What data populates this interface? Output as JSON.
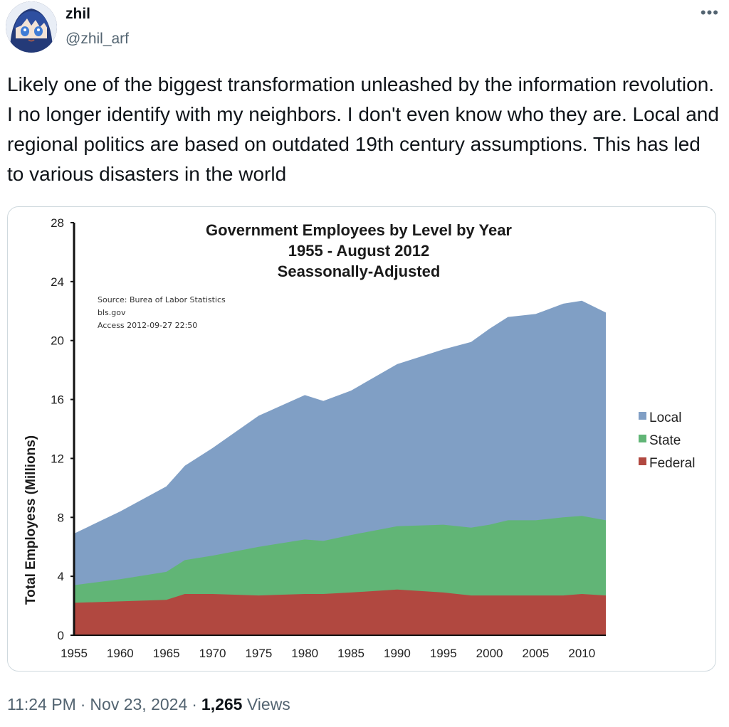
{
  "author": {
    "display_name": "zhil",
    "handle": "@zhil_arf"
  },
  "post": {
    "text": "Likely one of the biggest transformation unleashed by the information revolution. I no longer identify with my neighbors. I don't even know who they are. Local and regional politics are based on outdated 19th century assumptions. This has led to various disasters in the world",
    "time": "11:24 PM",
    "date": "Nov 23, 2024",
    "views_count": "1,265",
    "views_label": "Views",
    "more_icon": "more-horizontal-icon"
  },
  "colors": {
    "local": "#809fc5",
    "state": "#61b576",
    "federal": "#b14840"
  },
  "chart_data": {
    "type": "area",
    "stacked": true,
    "title_lines": [
      "Government Employees by Level by Year",
      "1955 - August 2012",
      "Seassonally-Adjusted"
    ],
    "source_lines": [
      "Source: Burea of Labor Statistics",
      "bls.gov",
      "Access 2012-09-27 22:50"
    ],
    "ylabel": "Total Employess (Millions)",
    "xlabel": "",
    "ylim": [
      0,
      28
    ],
    "xlim": [
      1955,
      2012.6
    ],
    "yticks": [
      0,
      4,
      8,
      12,
      16,
      20,
      24,
      28
    ],
    "xticks": [
      1955,
      1960,
      1965,
      1970,
      1975,
      1980,
      1985,
      1990,
      1995,
      2000,
      2005,
      2010
    ],
    "legend_position": "right",
    "x": [
      1955,
      1960,
      1965,
      1967,
      1970,
      1975,
      1980,
      1982,
      1985,
      1990,
      1995,
      1998,
      2000,
      2002,
      2005,
      2008,
      2010,
      2012.6
    ],
    "series": [
      {
        "name": "Local",
        "total": [
          6.9,
          8.4,
          10.1,
          11.5,
          12.7,
          14.9,
          16.3,
          15.9,
          16.6,
          18.4,
          19.4,
          19.9,
          20.8,
          21.6,
          21.8,
          22.5,
          22.7,
          21.9
        ]
      },
      {
        "name": "State",
        "total": [
          3.4,
          3.8,
          4.3,
          5.1,
          5.4,
          6.0,
          6.5,
          6.4,
          6.8,
          7.4,
          7.5,
          7.3,
          7.5,
          7.8,
          7.8,
          8.0,
          8.1,
          7.8
        ]
      },
      {
        "name": "Federal",
        "total": [
          2.2,
          2.3,
          2.4,
          2.8,
          2.8,
          2.7,
          2.8,
          2.8,
          2.9,
          3.1,
          2.9,
          2.7,
          2.7,
          2.7,
          2.7,
          2.7,
          2.8,
          2.7
        ]
      }
    ]
  }
}
